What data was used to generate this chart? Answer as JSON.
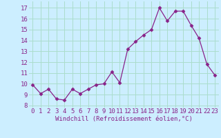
{
  "x": [
    0,
    1,
    2,
    3,
    4,
    5,
    6,
    7,
    8,
    9,
    10,
    11,
    12,
    13,
    14,
    15,
    16,
    17,
    18,
    19,
    20,
    21,
    22,
    23
  ],
  "y": [
    9.9,
    9.1,
    9.5,
    8.6,
    8.5,
    9.5,
    9.1,
    9.5,
    9.9,
    10.0,
    11.1,
    10.1,
    13.2,
    13.9,
    14.5,
    15.0,
    17.0,
    15.8,
    16.7,
    16.7,
    15.4,
    14.2,
    11.8,
    10.8
  ],
  "line_color": "#882288",
  "marker": "D",
  "marker_size": 2.5,
  "bg_color": "#cceeff",
  "grid_color": "#aaddcc",
  "xlabel": "Windchill (Refroidissement éolien,°C)",
  "ylabel_ticks": [
    8,
    9,
    10,
    11,
    12,
    13,
    14,
    15,
    16,
    17
  ],
  "ylim": [
    7.8,
    17.6
  ],
  "xlim": [
    -0.5,
    23.5
  ],
  "xlabel_fontsize": 6.5,
  "tick_fontsize": 6.5,
  "tick_color": "#882288",
  "label_color": "#882288"
}
